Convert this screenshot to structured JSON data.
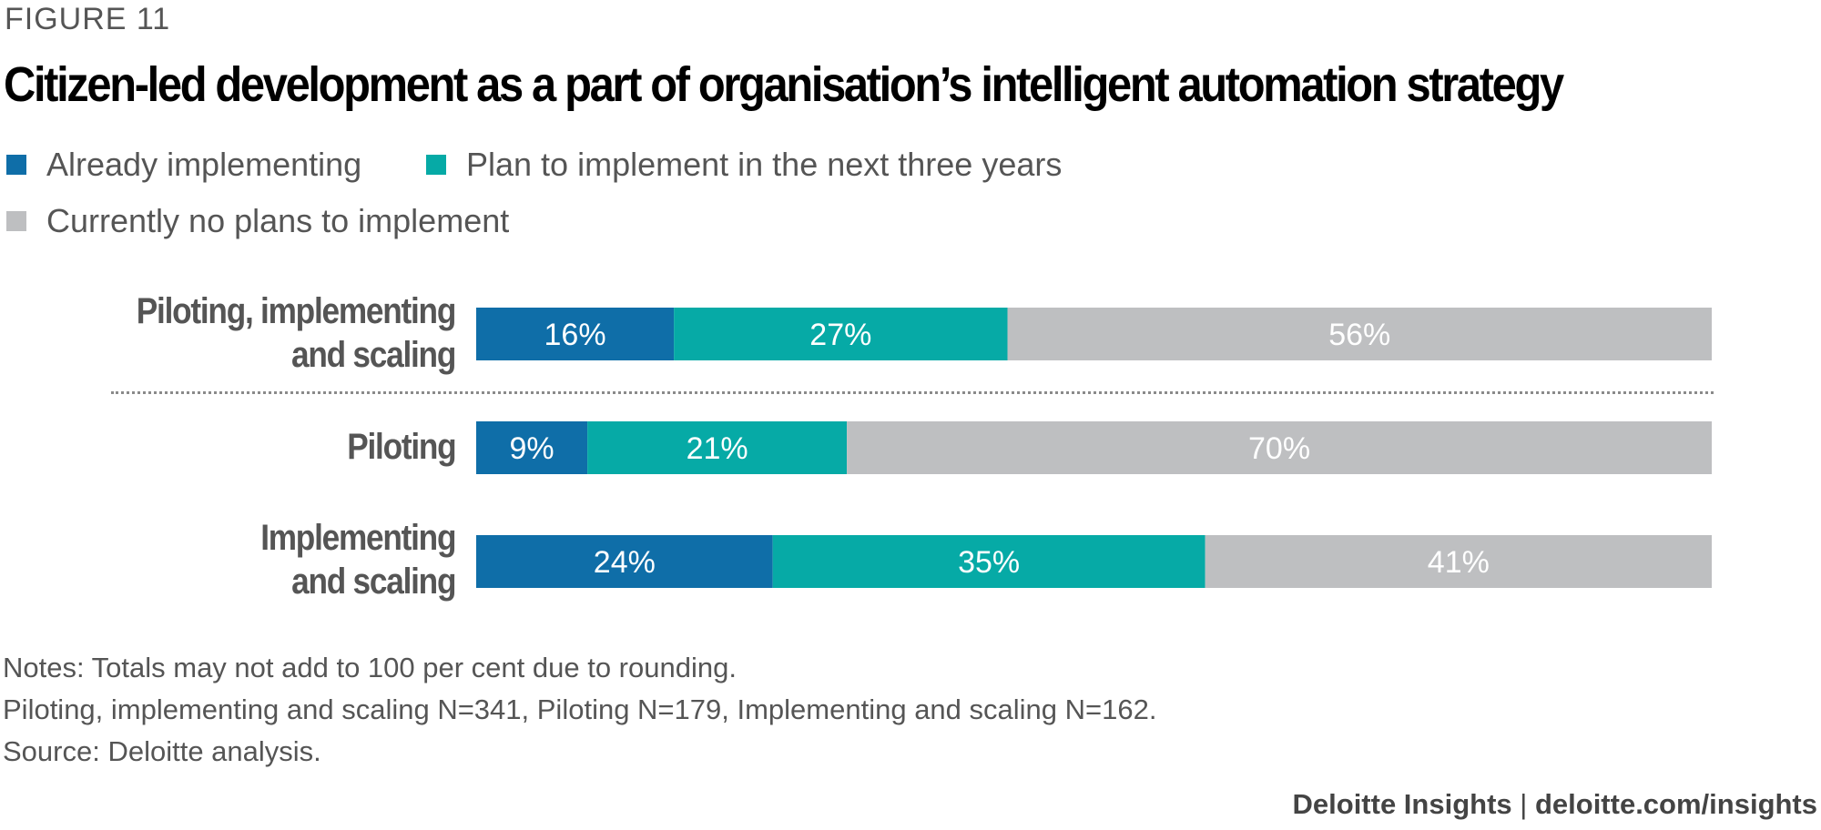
{
  "figure_label": "FIGURE 11",
  "footer": {
    "brand": "Deloitte Insights",
    "separator": "|",
    "url": "deloitte.com/insights"
  },
  "notes": [
    "Notes: Totals may not add to 100 per cent due to rounding.",
    "Piloting, implementing and scaling N=341, Piloting N=179, Implementing and scaling N=162.",
    "Source: Deloitte analysis."
  ],
  "chart_data": {
    "type": "bar",
    "orientation": "horizontal",
    "stacked": true,
    "title": "Citizen-led development as a part of organisation’s intelligent automation strategy",
    "categories": [
      [
        "Piloting, implementing",
        "and scaling"
      ],
      [
        "Piloting"
      ],
      [
        "Implementing",
        "and scaling"
      ]
    ],
    "series": [
      {
        "name": "Already implementing",
        "color": "#0f6ea8",
        "values": [
          16,
          9,
          24
        ],
        "labels": [
          "16%",
          "9%",
          "24%"
        ]
      },
      {
        "name": "Plan to implement in the next three years",
        "color": "#06aaa6",
        "values": [
          27,
          21,
          35
        ],
        "labels": [
          "27%",
          "21%",
          "35%"
        ]
      },
      {
        "name": "Currently no plans to implement",
        "color": "#bebfc1",
        "values": [
          56,
          70,
          41
        ],
        "labels": [
          "56%",
          "70%",
          "41%"
        ]
      }
    ],
    "xlim": [
      0,
      100
    ],
    "legend_position": "top-left",
    "grid": false
  }
}
